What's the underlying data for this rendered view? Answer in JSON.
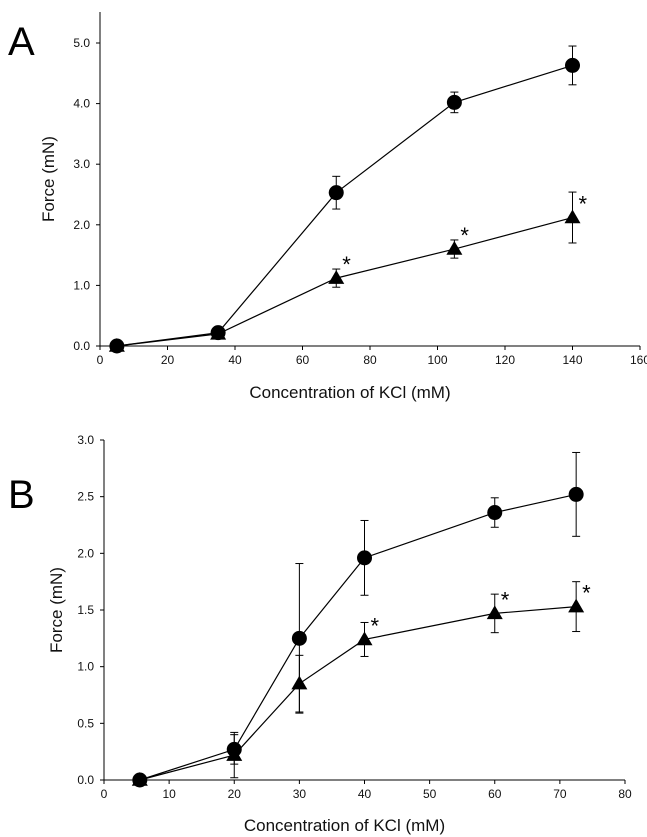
{
  "chart_data": [
    {
      "panel": "A",
      "type": "line",
      "xlabel": "Concentration of KCl (mM)",
      "ylabel": "Force (mN)",
      "xlim": [
        0,
        160
      ],
      "ylim": [
        0,
        5.0
      ],
      "xticks": [
        "0",
        "20",
        "40",
        "60",
        "80",
        "100",
        "120",
        "140",
        "160"
      ],
      "yticks": [
        "0.0",
        "1.0",
        "2.0",
        "3.0",
        "4.0",
        "5.0"
      ],
      "grid": false,
      "series": [
        {
          "marker": "circle",
          "x": [
            5,
            35,
            70,
            105,
            140
          ],
          "y": [
            0.0,
            0.22,
            2.53,
            4.02,
            4.63
          ],
          "err": [
            0.05,
            0.05,
            0.27,
            0.17,
            0.32
          ],
          "significance": [
            "",
            "",
            "",
            "",
            ""
          ]
        },
        {
          "marker": "triangle",
          "x": [
            5,
            35,
            70,
            105,
            140
          ],
          "y": [
            0.0,
            0.2,
            1.12,
            1.6,
            2.12
          ],
          "err": [
            0.05,
            0.05,
            0.15,
            0.15,
            0.42
          ],
          "significance": [
            "",
            "",
            "*",
            "*",
            "*"
          ]
        }
      ]
    },
    {
      "panel": "B",
      "type": "line",
      "xlabel": "Concentration of KCl (mM)",
      "ylabel": "Force (mN)",
      "xlim": [
        0,
        80
      ],
      "ylim": [
        0,
        3.0
      ],
      "xticks": [
        "0",
        "10",
        "20",
        "30",
        "40",
        "50",
        "60",
        "70",
        "80"
      ],
      "yticks": [
        "0.0",
        "0.5",
        "1.0",
        "1.5",
        "2.0",
        "2.5",
        "3.0"
      ],
      "grid": false,
      "series": [
        {
          "marker": "circle",
          "x": [
            5.5,
            20,
            30,
            40,
            60,
            72.5
          ],
          "y": [
            0.0,
            0.27,
            1.25,
            1.96,
            2.36,
            2.52
          ],
          "err": [
            0.02,
            0.13,
            0.66,
            0.33,
            0.13,
            0.37
          ],
          "significance": [
            "",
            "",
            "",
            "",
            "",
            ""
          ]
        },
        {
          "marker": "triangle",
          "x": [
            5.5,
            20,
            30,
            40,
            60,
            72.5
          ],
          "y": [
            0.0,
            0.22,
            0.85,
            1.24,
            1.47,
            1.53
          ],
          "err": [
            0.02,
            0.2,
            0.25,
            0.15,
            0.17,
            0.22
          ],
          "significance": [
            "",
            "",
            "",
            "*",
            "*",
            "*"
          ]
        }
      ]
    }
  ]
}
